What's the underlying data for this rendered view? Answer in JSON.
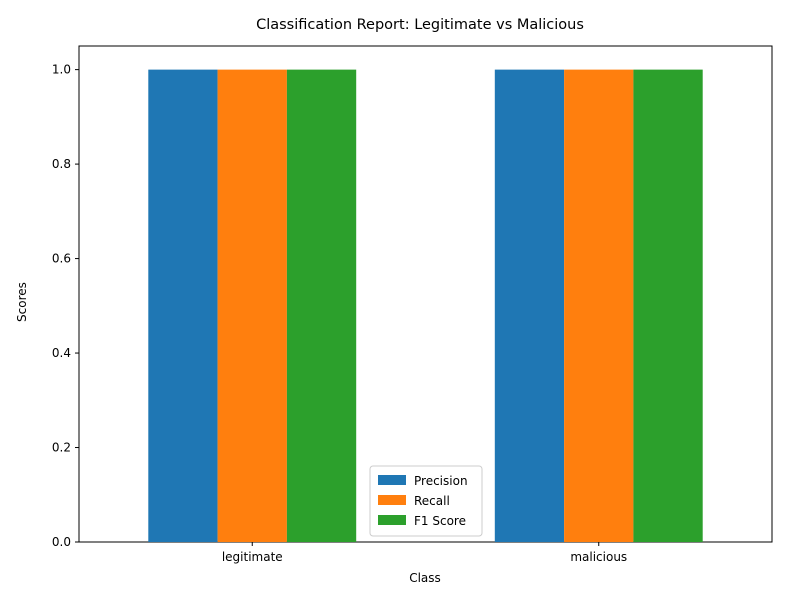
{
  "chart_data": {
    "type": "bar",
    "title": "Classification Report: Legitimate vs Malicious",
    "xlabel": "Class",
    "ylabel": "Scores",
    "categories": [
      "legitimate",
      "malicious"
    ],
    "series": [
      {
        "name": "Precision",
        "values": [
          1.0,
          1.0
        ],
        "color": "#1f77b4"
      },
      {
        "name": "Recall",
        "values": [
          1.0,
          1.0
        ],
        "color": "#ff7f0e"
      },
      {
        "name": "F1 Score",
        "values": [
          1.0,
          1.0
        ],
        "color": "#2ca02c"
      }
    ],
    "ylim": [
      0,
      1.05
    ],
    "yticks": [
      "0.0",
      "0.2",
      "0.4",
      "0.6",
      "0.8",
      "1.0"
    ],
    "grid": false,
    "legend_position": "lower center"
  }
}
